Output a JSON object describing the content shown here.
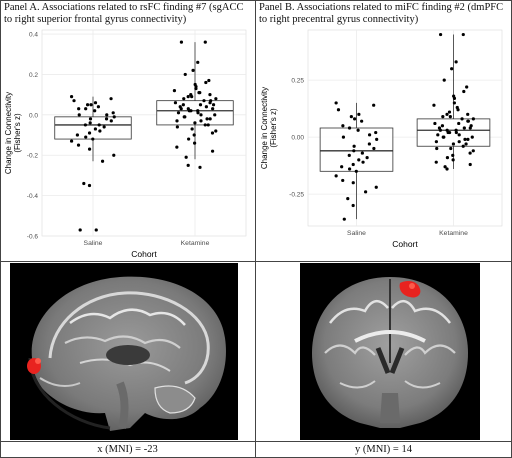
{
  "panels": [
    {
      "caption": "Panel A. Associations related to rsFC finding #7 (sgACC to right superior frontal gyrus connectivity)",
      "brain_label": "x (MNI) = -23"
    },
    {
      "caption": "Panel B. Associations related to miFC finding #2 (dmPFC to right precentral gyrus connectivity)",
      "brain_label": "y (MNI) = 14"
    }
  ],
  "chart_data": [
    {
      "type": "boxplot",
      "xlabel": "Cohort",
      "ylabel": "Change in Connectivity (Fisher's z)",
      "ylabel_lines": [
        "Change in Connectivity",
        "(Fisher's z)"
      ],
      "categories": [
        "Saline",
        "Ketamine"
      ],
      "ylim": [
        -0.6,
        0.42
      ],
      "yticks": [
        0.4,
        0.2,
        0.0,
        -0.2,
        -0.4,
        -0.6
      ],
      "ytick_labels": [
        "0.4",
        "0.2",
        "0.0",
        "-0.2",
        "-0.4",
        "-0.6"
      ],
      "grid": true,
      "boxes": [
        {
          "category": "Saline",
          "q1": -0.12,
          "median": -0.05,
          "q3": -0.01,
          "whisker_low": -0.23,
          "whisker_high": 0.09
        },
        {
          "category": "Ketamine",
          "q1": -0.05,
          "median": 0.02,
          "q3": 0.07,
          "whisker_low": -0.22,
          "whisker_high": 0.36
        }
      ],
      "points": [
        {
          "category": "Saline",
          "y": [
            0.09,
            0.08,
            0.07,
            0.06,
            0.05,
            0.05,
            0.04,
            0.03,
            0.03,
            0.02,
            0.01,
            0.0,
            0.0,
            -0.01,
            -0.02,
            -0.02,
            -0.03,
            -0.04,
            -0.05,
            -0.05,
            -0.06,
            -0.07,
            -0.08,
            -0.09,
            -0.1,
            -0.11,
            -0.12,
            -0.13,
            -0.15,
            -0.17,
            -0.2,
            -0.23,
            -0.34,
            -0.35,
            -0.57,
            -0.57
          ]
        },
        {
          "category": "Ketamine",
          "y": [
            0.36,
            0.36,
            0.26,
            0.22,
            0.2,
            0.17,
            0.16,
            0.15,
            0.14,
            0.13,
            0.12,
            0.11,
            0.11,
            0.1,
            0.1,
            0.09,
            0.09,
            0.08,
            0.08,
            0.07,
            0.07,
            0.06,
            0.06,
            0.05,
            0.05,
            0.05,
            0.04,
            0.04,
            0.03,
            0.03,
            0.03,
            0.02,
            0.02,
            0.02,
            0.01,
            0.01,
            0.0,
            0.0,
            -0.01,
            -0.01,
            -0.02,
            -0.02,
            -0.03,
            -0.03,
            -0.04,
            -0.05,
            -0.05,
            -0.06,
            -0.07,
            -0.08,
            -0.09,
            -0.1,
            -0.12,
            -0.14,
            -0.16,
            -0.18,
            -0.21,
            -0.25,
            -0.26
          ]
        }
      ]
    },
    {
      "type": "boxplot",
      "xlabel": "Cohort",
      "ylabel": "Change in Connectivity (Fisher's z)",
      "ylabel_lines": [
        "Change in Connectivity",
        "(Fisher's z)"
      ],
      "categories": [
        "Saline",
        "Ketamine"
      ],
      "ylim": [
        -0.39,
        0.47
      ],
      "yticks": [
        0.25,
        0.0,
        -0.25
      ],
      "ytick_labels": [
        "0.25",
        "0.00",
        "-0.25"
      ],
      "grid": true,
      "boxes": [
        {
          "category": "Saline",
          "q1": -0.15,
          "median": -0.06,
          "q3": 0.04,
          "whisker_low": -0.36,
          "whisker_high": 0.15
        },
        {
          "category": "Ketamine",
          "q1": -0.04,
          "median": 0.03,
          "q3": 0.08,
          "whisker_low": -0.14,
          "whisker_high": 0.45
        }
      ],
      "points": [
        {
          "category": "Saline",
          "y": [
            0.15,
            0.14,
            0.12,
            0.1,
            0.09,
            0.08,
            0.07,
            0.05,
            0.04,
            0.03,
            0.02,
            0.01,
            0.0,
            -0.01,
            -0.03,
            -0.04,
            -0.05,
            -0.06,
            -0.07,
            -0.08,
            -0.09,
            -0.1,
            -0.11,
            -0.12,
            -0.13,
            -0.14,
            -0.15,
            -0.17,
            -0.19,
            -0.2,
            -0.22,
            -0.24,
            -0.27,
            -0.3,
            -0.36
          ]
        },
        {
          "category": "Ketamine",
          "y": [
            0.45,
            0.45,
            0.33,
            0.3,
            0.25,
            0.22,
            0.2,
            0.18,
            0.17,
            0.15,
            0.14,
            0.13,
            0.12,
            0.11,
            0.1,
            0.1,
            0.09,
            0.09,
            0.08,
            0.08,
            0.07,
            0.07,
            0.06,
            0.06,
            0.05,
            0.05,
            0.04,
            0.04,
            0.04,
            0.03,
            0.03,
            0.03,
            0.02,
            0.02,
            0.02,
            0.01,
            0.01,
            0.0,
            0.0,
            0.0,
            -0.01,
            -0.01,
            -0.02,
            -0.02,
            -0.03,
            -0.03,
            -0.04,
            -0.05,
            -0.05,
            -0.06,
            -0.07,
            -0.08,
            -0.09,
            -0.1,
            -0.11,
            -0.12,
            -0.13,
            -0.14
          ]
        }
      ]
    }
  ],
  "colors": {
    "activation": "#e8231f",
    "border": "#444444",
    "grid": "#ebebeb",
    "point": "#000000"
  },
  "brain_images": [
    "sagittal-mri-slice",
    "coronal-mri-slice"
  ]
}
